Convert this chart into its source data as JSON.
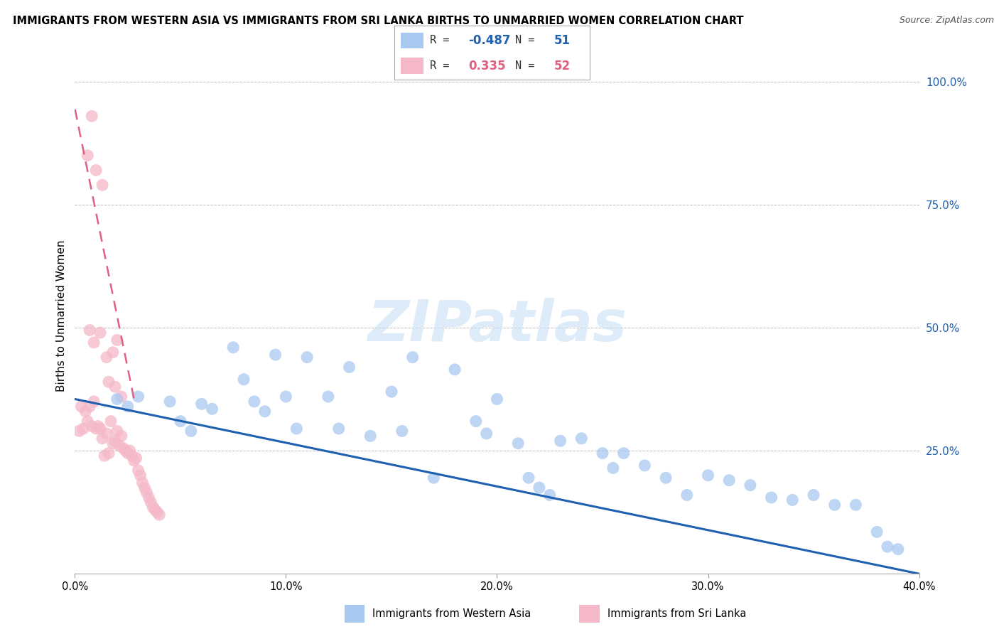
{
  "title": "IMMIGRANTS FROM WESTERN ASIA VS IMMIGRANTS FROM SRI LANKA BIRTHS TO UNMARRIED WOMEN CORRELATION CHART",
  "source": "Source: ZipAtlas.com",
  "ylabel": "Births to Unmarried Women",
  "xlim": [
    0.0,
    0.4
  ],
  "ylim": [
    0.0,
    1.05
  ],
  "xticks": [
    0.0,
    0.1,
    0.2,
    0.3,
    0.4
  ],
  "xtick_labels": [
    "0.0%",
    "10.0%",
    "20.0%",
    "30.0%",
    "40.0%"
  ],
  "yticks_right": [
    0.25,
    0.5,
    0.75,
    1.0
  ],
  "ytick_labels_right": [
    "25.0%",
    "50.0%",
    "75.0%",
    "100.0%"
  ],
  "blue_scatter_color": "#A8C8F0",
  "pink_scatter_color": "#F5B8C8",
  "blue_line_color": "#2060B0",
  "pink_line_color": "#E06080",
  "watermark_text": "ZIPatlas",
  "western_asia_x": [
    0.02,
    0.025,
    0.03,
    0.045,
    0.05,
    0.055,
    0.06,
    0.065,
    0.075,
    0.08,
    0.085,
    0.09,
    0.095,
    0.1,
    0.105,
    0.11,
    0.12,
    0.125,
    0.13,
    0.14,
    0.15,
    0.155,
    0.16,
    0.17,
    0.18,
    0.19,
    0.195,
    0.2,
    0.21,
    0.215,
    0.22,
    0.225,
    0.23,
    0.24,
    0.25,
    0.255,
    0.26,
    0.27,
    0.28,
    0.29,
    0.3,
    0.31,
    0.32,
    0.33,
    0.34,
    0.35,
    0.36,
    0.37,
    0.38,
    0.385,
    0.39
  ],
  "western_asia_y": [
    0.355,
    0.34,
    0.36,
    0.35,
    0.31,
    0.29,
    0.345,
    0.335,
    0.46,
    0.395,
    0.35,
    0.33,
    0.445,
    0.36,
    0.295,
    0.44,
    0.36,
    0.295,
    0.42,
    0.28,
    0.37,
    0.29,
    0.44,
    0.195,
    0.415,
    0.31,
    0.285,
    0.355,
    0.265,
    0.195,
    0.175,
    0.16,
    0.27,
    0.275,
    0.245,
    0.215,
    0.245,
    0.22,
    0.195,
    0.16,
    0.2,
    0.19,
    0.18,
    0.155,
    0.15,
    0.16,
    0.14,
    0.14,
    0.085,
    0.055,
    0.05
  ],
  "sri_lanka_x": [
    0.002,
    0.003,
    0.004,
    0.005,
    0.006,
    0.007,
    0.008,
    0.009,
    0.01,
    0.011,
    0.012,
    0.013,
    0.014,
    0.015,
    0.016,
    0.017,
    0.018,
    0.019,
    0.02,
    0.021,
    0.022,
    0.023,
    0.024,
    0.025,
    0.026,
    0.027,
    0.028,
    0.029,
    0.03,
    0.031,
    0.032,
    0.033,
    0.034,
    0.035,
    0.036,
    0.037,
    0.038,
    0.039,
    0.04,
    0.007,
    0.009,
    0.012,
    0.015,
    0.018,
    0.02,
    0.008,
    0.006,
    0.01,
    0.013,
    0.016,
    0.019,
    0.022
  ],
  "sri_lanka_y": [
    0.29,
    0.34,
    0.295,
    0.33,
    0.31,
    0.34,
    0.3,
    0.35,
    0.295,
    0.3,
    0.295,
    0.275,
    0.24,
    0.285,
    0.245,
    0.31,
    0.265,
    0.27,
    0.29,
    0.26,
    0.28,
    0.255,
    0.25,
    0.245,
    0.25,
    0.24,
    0.23,
    0.235,
    0.21,
    0.2,
    0.185,
    0.175,
    0.165,
    0.155,
    0.145,
    0.135,
    0.13,
    0.125,
    0.12,
    0.495,
    0.47,
    0.49,
    0.44,
    0.45,
    0.475,
    0.93,
    0.85,
    0.82,
    0.79,
    0.39,
    0.38,
    0.36
  ],
  "background_color": "#FFFFFF",
  "grid_color": "#BBBBBB"
}
